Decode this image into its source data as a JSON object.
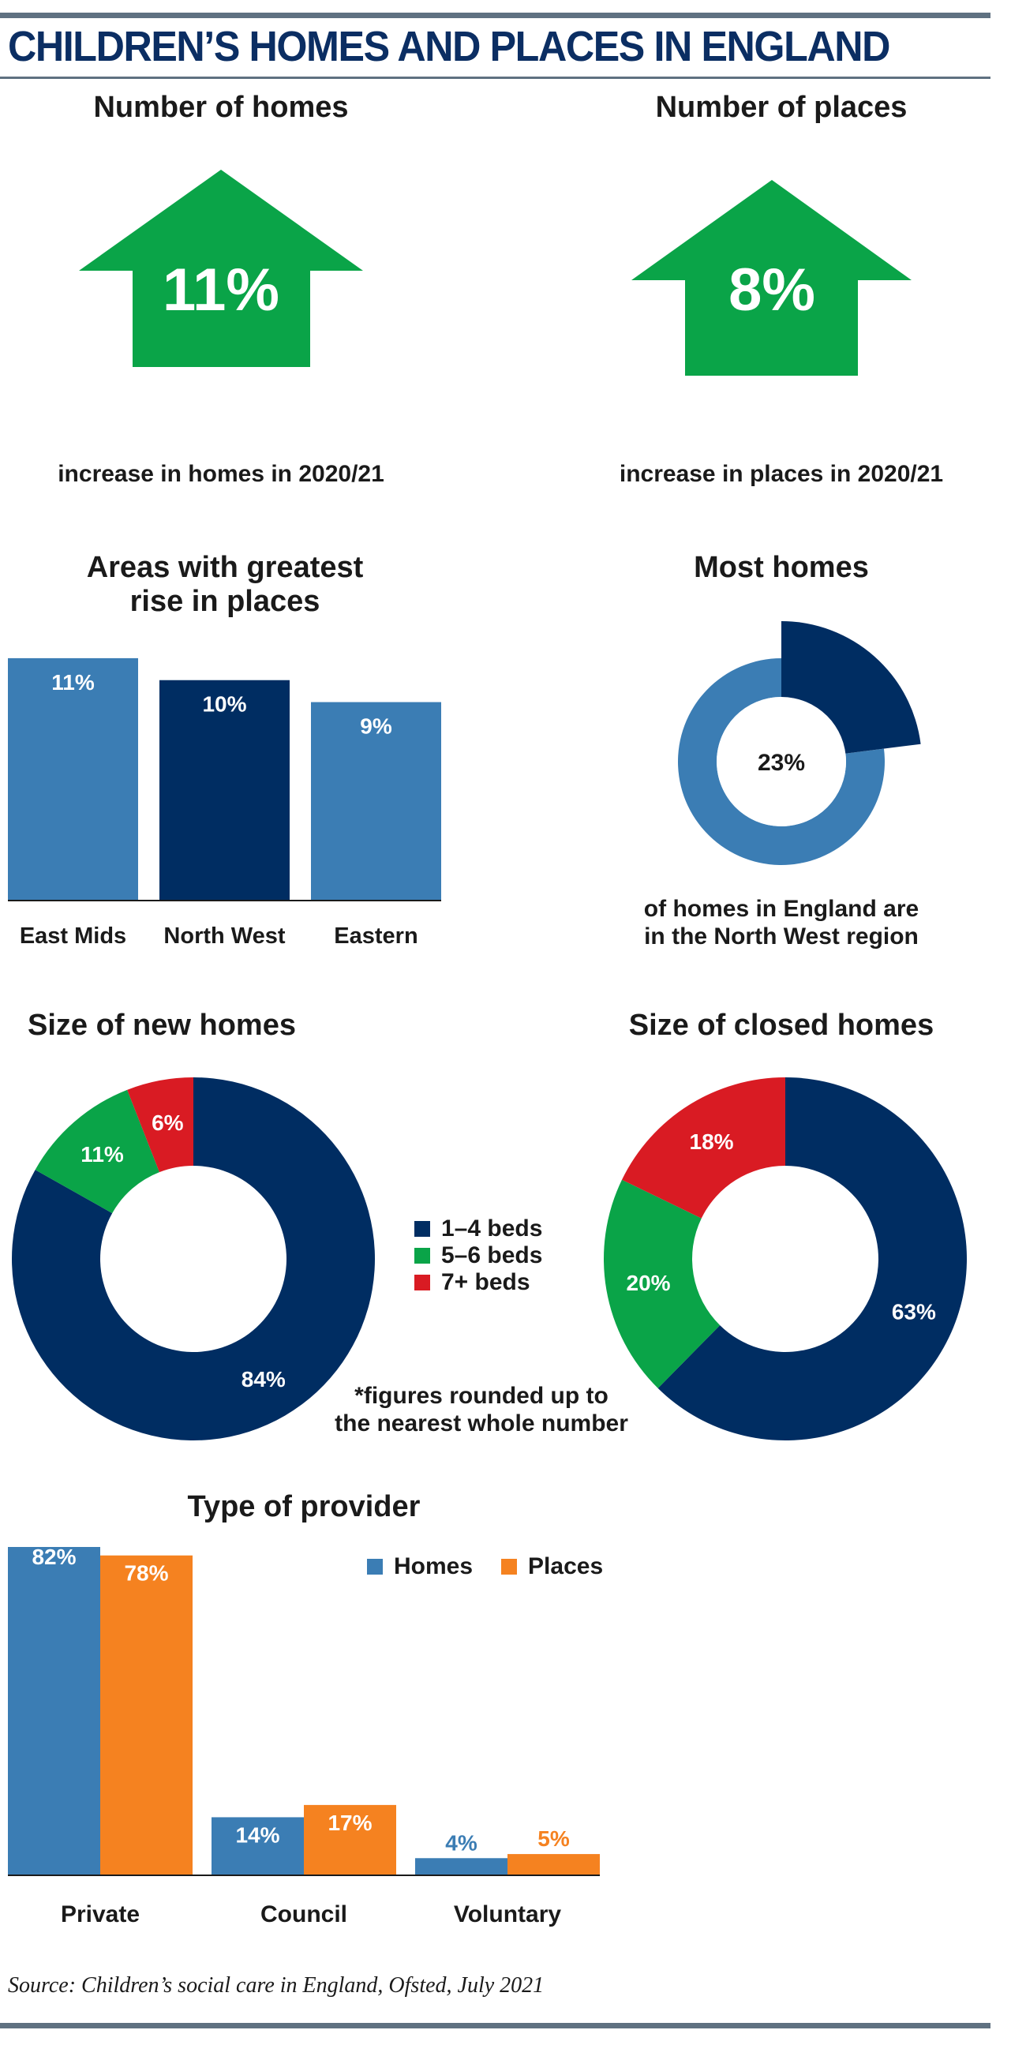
{
  "title": "CHILDREN’S HOMES AND PLACES IN ENGLAND",
  "colors": {
    "navy": "#002d62",
    "blue": "#3b7db4",
    "green": "#0aa448",
    "red": "#d91b23",
    "orange": "#f58220",
    "rule": "#5f7181",
    "title": "#0b2e63"
  },
  "homes_increase": {
    "heading": "Number of homes",
    "value": "11%",
    "caption": "increase in homes in 2020/21",
    "icon": "up-arrow-icon"
  },
  "places_increase": {
    "heading": "Number of places",
    "value": "8%",
    "caption": "increase in places in 2020/21",
    "icon": "up-arrow-icon"
  },
  "size_legend": [
    "1–4 beds",
    "5–6 beds",
    "7+ beds"
  ],
  "footnote": [
    "*figures rounded up to",
    "the nearest whole number"
  ],
  "source": "Source: Children’s social care in England, Ofsted, July 2021",
  "chart_data": [
    {
      "id": "areas",
      "type": "bar",
      "title": [
        "Areas with greatest",
        "rise in places"
      ],
      "categories": [
        "East Mids",
        "North West",
        "Eastern"
      ],
      "values": [
        11,
        10,
        9
      ],
      "labels": [
        "11%",
        "10%",
        "9%"
      ],
      "colors": [
        "#3b7db4",
        "#002d62",
        "#3b7db4"
      ]
    },
    {
      "id": "most_homes",
      "type": "pie",
      "title": "Most homes",
      "values": [
        23,
        77
      ],
      "label": "23%",
      "caption": [
        "of homes in England are",
        "in the North West region"
      ]
    },
    {
      "id": "new_homes",
      "type": "pie",
      "title": "Size of new homes",
      "categories": [
        "1–4 beds",
        "5–6 beds",
        "7+ beds"
      ],
      "values": [
        84,
        11,
        6
      ],
      "labels": [
        "84%",
        "11%",
        "6%"
      ]
    },
    {
      "id": "closed_homes",
      "type": "pie",
      "title": "Size of closed homes",
      "categories": [
        "1–4 beds",
        "5–6 beds",
        "7+ beds"
      ],
      "values": [
        63,
        20,
        18
      ],
      "labels": [
        "63%",
        "20%",
        "18%"
      ]
    },
    {
      "id": "provider",
      "type": "bar",
      "title": "Type of provider",
      "categories": [
        "Private",
        "Council",
        "Voluntary"
      ],
      "series": [
        {
          "name": "Homes",
          "values": [
            82,
            14,
            4
          ],
          "labels": [
            "82%",
            "14%",
            "4%"
          ]
        },
        {
          "name": "Places",
          "values": [
            78,
            17,
            5
          ],
          "labels": [
            "78%",
            "17%",
            "5%"
          ]
        }
      ],
      "legend": "top-right"
    }
  ]
}
